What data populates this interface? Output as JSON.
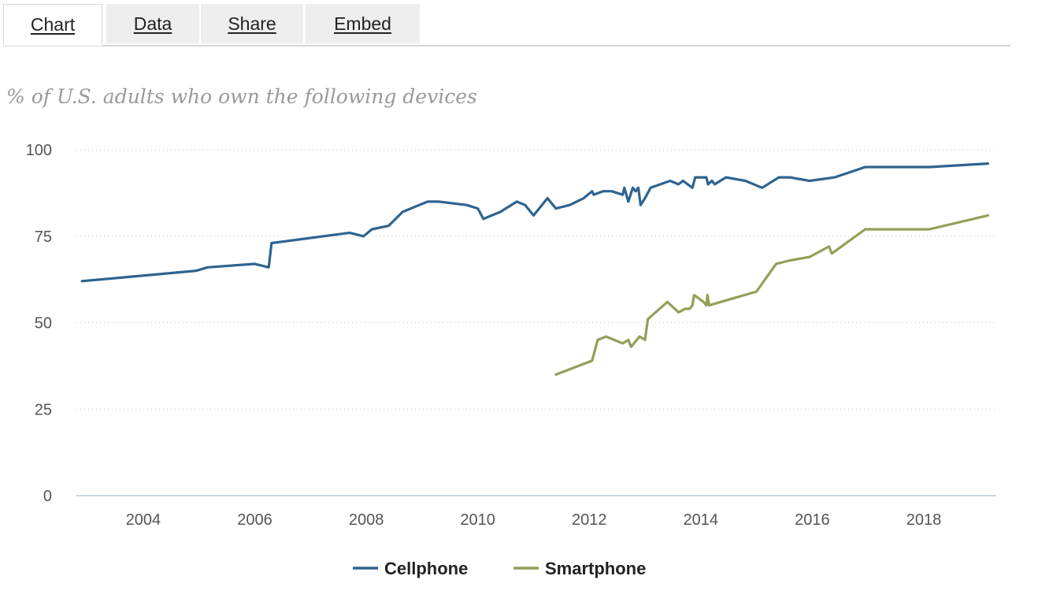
{
  "tabs": [
    {
      "label": "Chart",
      "active": true
    },
    {
      "label": "Data",
      "active": false
    },
    {
      "label": "Share",
      "active": false
    },
    {
      "label": "Embed",
      "active": false
    }
  ],
  "chart_data": {
    "type": "line",
    "title": "",
    "subtitle": "% of U.S. adults who own the following devices",
    "xlabel": "",
    "ylabel": "",
    "xlim": [
      2002.8,
      2019.3
    ],
    "ylim": [
      0,
      100
    ],
    "yticks": [
      0,
      25,
      50,
      75,
      100
    ],
    "xticks": [
      2004,
      2006,
      2008,
      2010,
      2012,
      2014,
      2016,
      2018
    ],
    "grid": "horizontal-dotted",
    "legend_position": "bottom",
    "series": [
      {
        "name": "Cellphone",
        "color": "#2e6490",
        "points": [
          [
            2002.9,
            62
          ],
          [
            2004.95,
            65
          ],
          [
            2005.15,
            66
          ],
          [
            2006.0,
            67
          ],
          [
            2006.25,
            66
          ],
          [
            2006.3,
            73
          ],
          [
            2007.7,
            76
          ],
          [
            2007.95,
            75
          ],
          [
            2008.1,
            77
          ],
          [
            2008.4,
            78
          ],
          [
            2008.65,
            82
          ],
          [
            2008.95,
            84
          ],
          [
            2009.1,
            85
          ],
          [
            2009.3,
            85
          ],
          [
            2009.8,
            84
          ],
          [
            2010.0,
            83
          ],
          [
            2010.1,
            80
          ],
          [
            2010.4,
            82
          ],
          [
            2010.7,
            85
          ],
          [
            2010.85,
            84
          ],
          [
            2010.95,
            82
          ],
          [
            2011.0,
            81
          ],
          [
            2011.25,
            86
          ],
          [
            2011.4,
            83
          ],
          [
            2011.65,
            84
          ],
          [
            2011.9,
            86
          ],
          [
            2012.05,
            88
          ],
          [
            2012.08,
            87
          ],
          [
            2012.25,
            88
          ],
          [
            2012.4,
            88
          ],
          [
            2012.6,
            87
          ],
          [
            2012.63,
            89
          ],
          [
            2012.7,
            85
          ],
          [
            2012.78,
            89
          ],
          [
            2012.83,
            88
          ],
          [
            2012.88,
            89
          ],
          [
            2012.92,
            84
          ],
          [
            2013.0,
            86
          ],
          [
            2013.1,
            89
          ],
          [
            2013.45,
            91
          ],
          [
            2013.6,
            90
          ],
          [
            2013.68,
            91
          ],
          [
            2013.85,
            89
          ],
          [
            2013.9,
            92
          ],
          [
            2014.1,
            92
          ],
          [
            2014.13,
            90
          ],
          [
            2014.2,
            91
          ],
          [
            2014.25,
            90
          ],
          [
            2014.45,
            92
          ],
          [
            2014.8,
            91
          ],
          [
            2015.1,
            89
          ],
          [
            2015.4,
            92
          ],
          [
            2015.6,
            92
          ],
          [
            2015.95,
            91
          ],
          [
            2016.4,
            92
          ],
          [
            2016.95,
            95
          ],
          [
            2018.1,
            95
          ],
          [
            2019.15,
            96
          ]
        ]
      },
      {
        "name": "Smartphone",
        "color": "#949f58",
        "points": [
          [
            2011.4,
            35
          ],
          [
            2012.05,
            39
          ],
          [
            2012.15,
            45
          ],
          [
            2012.3,
            46
          ],
          [
            2012.6,
            44
          ],
          [
            2012.7,
            45
          ],
          [
            2012.75,
            43
          ],
          [
            2012.9,
            46
          ],
          [
            2013.0,
            45
          ],
          [
            2013.05,
            51
          ],
          [
            2013.4,
            56
          ],
          [
            2013.6,
            53
          ],
          [
            2013.72,
            54
          ],
          [
            2013.8,
            54
          ],
          [
            2013.85,
            55
          ],
          [
            2013.88,
            58
          ],
          [
            2014.05,
            56
          ],
          [
            2014.1,
            55
          ],
          [
            2014.12,
            58
          ],
          [
            2014.15,
            55
          ],
          [
            2015.0,
            59
          ],
          [
            2015.35,
            67
          ],
          [
            2015.6,
            68
          ],
          [
            2015.95,
            69
          ],
          [
            2016.3,
            72
          ],
          [
            2016.35,
            70
          ],
          [
            2016.95,
            77
          ],
          [
            2018.1,
            77
          ],
          [
            2019.15,
            81
          ]
        ]
      }
    ]
  }
}
